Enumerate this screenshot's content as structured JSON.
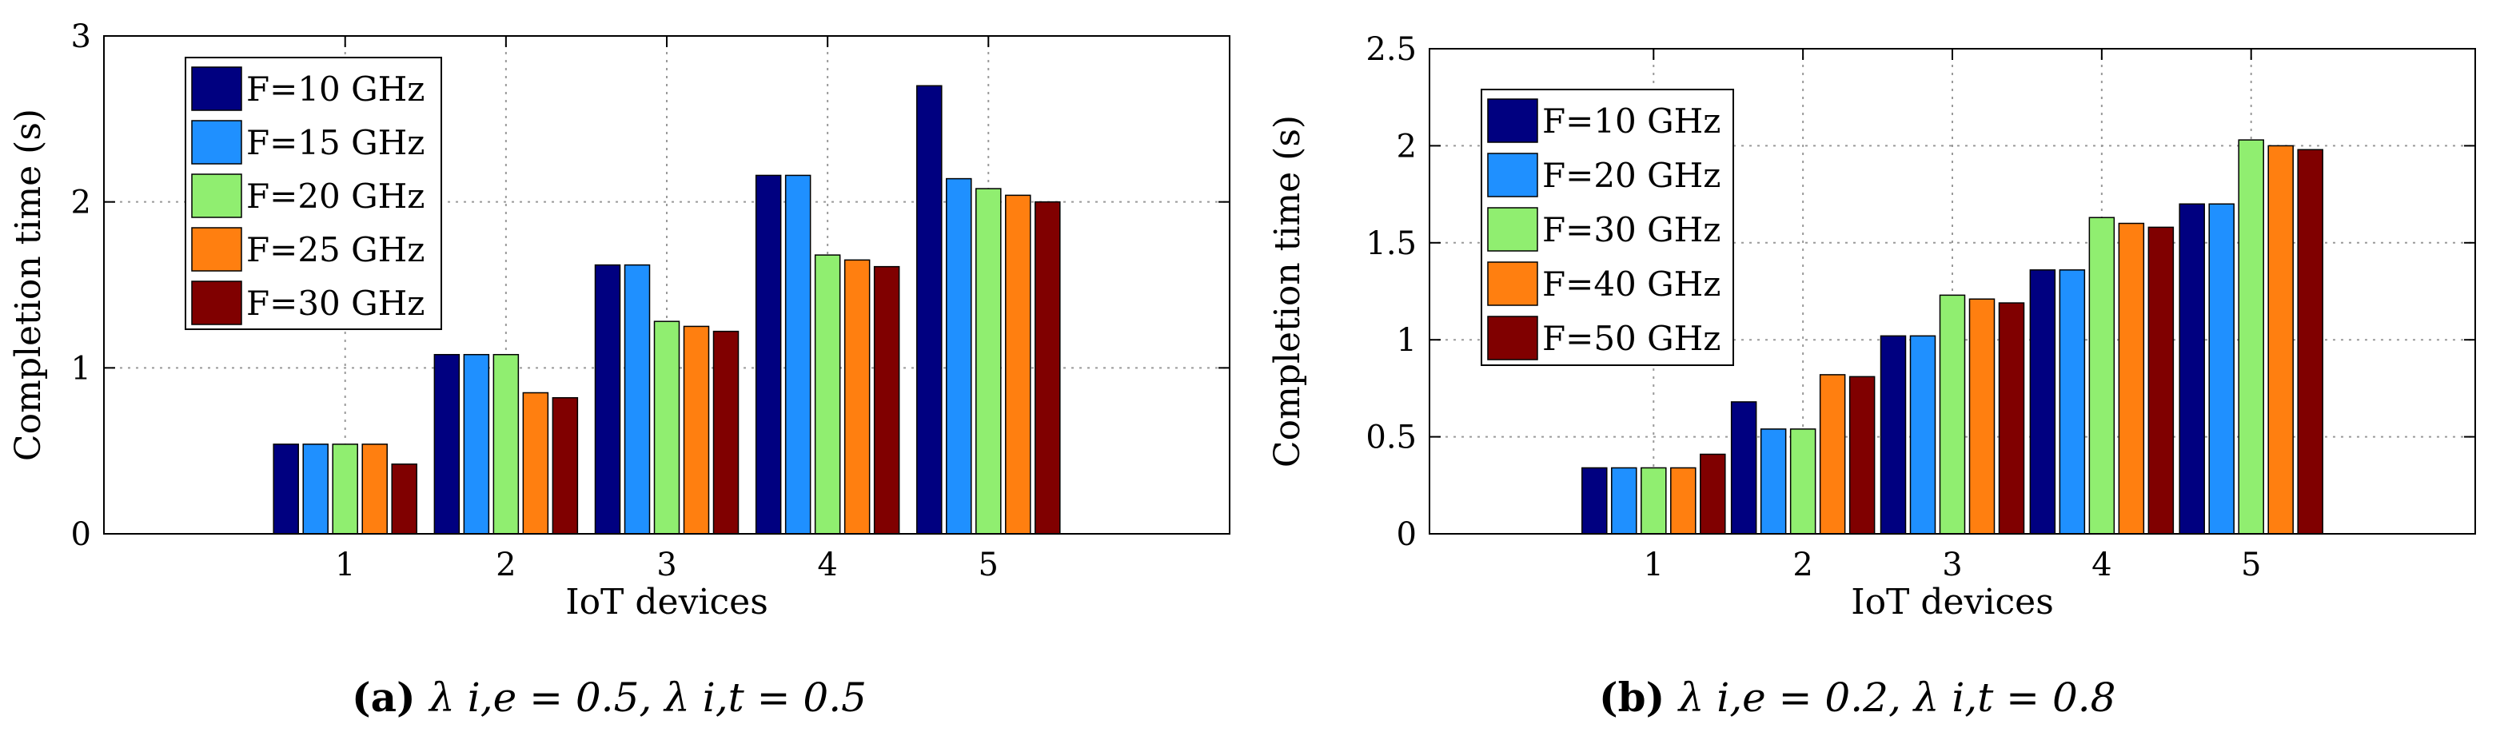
{
  "colors": [
    "#000080",
    "#1f90ff",
    "#90ee70",
    "#ff7f10",
    "#800000"
  ],
  "chart_data": [
    {
      "type": "bar",
      "categories": [
        "1",
        "2",
        "3",
        "4",
        "5"
      ],
      "xlabel": "IoT devices",
      "ylabel": "Completion time (s)",
      "ylim": [
        0,
        3
      ],
      "yticks": [
        "0",
        "1",
        "2",
        "3"
      ],
      "grid": true,
      "legend_position": "top-left",
      "series": [
        {
          "name": "F=10 GHz",
          "values": [
            0.54,
            1.08,
            1.62,
            2.16,
            2.7
          ]
        },
        {
          "name": "F=15 GHz",
          "values": [
            0.54,
            1.08,
            1.62,
            2.16,
            2.14
          ]
        },
        {
          "name": "F=20 GHz",
          "values": [
            0.54,
            1.08,
            1.28,
            1.68,
            2.08
          ]
        },
        {
          "name": "F=25 GHz",
          "values": [
            0.54,
            0.85,
            1.25,
            1.65,
            2.04
          ]
        },
        {
          "name": "F=30 GHz",
          "values": [
            0.42,
            0.82,
            1.22,
            1.61,
            2.0
          ]
        }
      ],
      "caption": {
        "label": "(a)",
        "math": "λ i,e = 0.5, λ i,t = 0.5"
      }
    },
    {
      "type": "bar",
      "categories": [
        "1",
        "2",
        "3",
        "4",
        "5"
      ],
      "xlabel": "IoT devices",
      "ylabel": "Completion time (s)",
      "ylim": [
        0,
        2.5
      ],
      "yticks": [
        "0",
        "0.5",
        "1",
        "1.5",
        "2",
        "2.5"
      ],
      "grid": true,
      "legend_position": "top-left",
      "series": [
        {
          "name": "F=10 GHz",
          "values": [
            0.34,
            0.68,
            1.02,
            1.36,
            1.7
          ]
        },
        {
          "name": "F=20 GHz",
          "values": [
            0.34,
            0.54,
            1.02,
            1.36,
            1.7
          ]
        },
        {
          "name": "F=30 GHz",
          "values": [
            0.34,
            0.54,
            1.23,
            1.63,
            2.03
          ]
        },
        {
          "name": "F=40 GHz",
          "values": [
            0.34,
            0.82,
            1.21,
            1.6,
            2.0
          ]
        },
        {
          "name": "F=50 GHz",
          "values": [
            0.41,
            0.81,
            1.19,
            1.58,
            1.98
          ]
        }
      ],
      "caption": {
        "label": "(b)",
        "math": "λ i,e = 0.2, λ i,t = 0.8"
      }
    }
  ]
}
